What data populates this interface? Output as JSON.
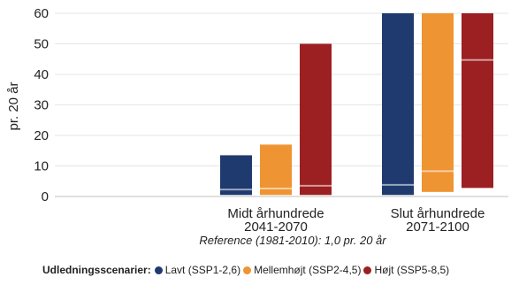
{
  "chart_data": {
    "type": "bar",
    "ylabel": "pr. 20 år",
    "ylim": [
      0,
      60
    ],
    "yticks": [
      0,
      10,
      20,
      30,
      40,
      50,
      60
    ],
    "categories": [
      {
        "line1": "Midt århundrede",
        "line2": "2041-2070"
      },
      {
        "line1": "Slut århundrede",
        "line2": "2071-2100"
      }
    ],
    "series": [
      {
        "name": "Lavt (SSP1-2,6)",
        "color": "#1f3a6e",
        "low": [
          0.5,
          0.5
        ],
        "median": [
          2.3,
          3.8
        ],
        "high": [
          13.5,
          60
        ]
      },
      {
        "name": "Mellemhøjt (SSP2-4,5)",
        "color": "#ef9433",
        "low": [
          0.5,
          1.5
        ],
        "median": [
          2.6,
          8.3
        ],
        "high": [
          17,
          60
        ]
      },
      {
        "name": "Højt (SSP5-8,5)",
        "color": "#9c2021",
        "low": [
          0.5,
          2.8
        ],
        "median": [
          3.5,
          44.7
        ],
        "high": [
          50,
          60
        ]
      }
    ],
    "reference_note": "Reference (1981-2010): 1,0 pr. 20 år",
    "legend_title": "Udledningsscenarier:",
    "legend_position": "bottom"
  }
}
